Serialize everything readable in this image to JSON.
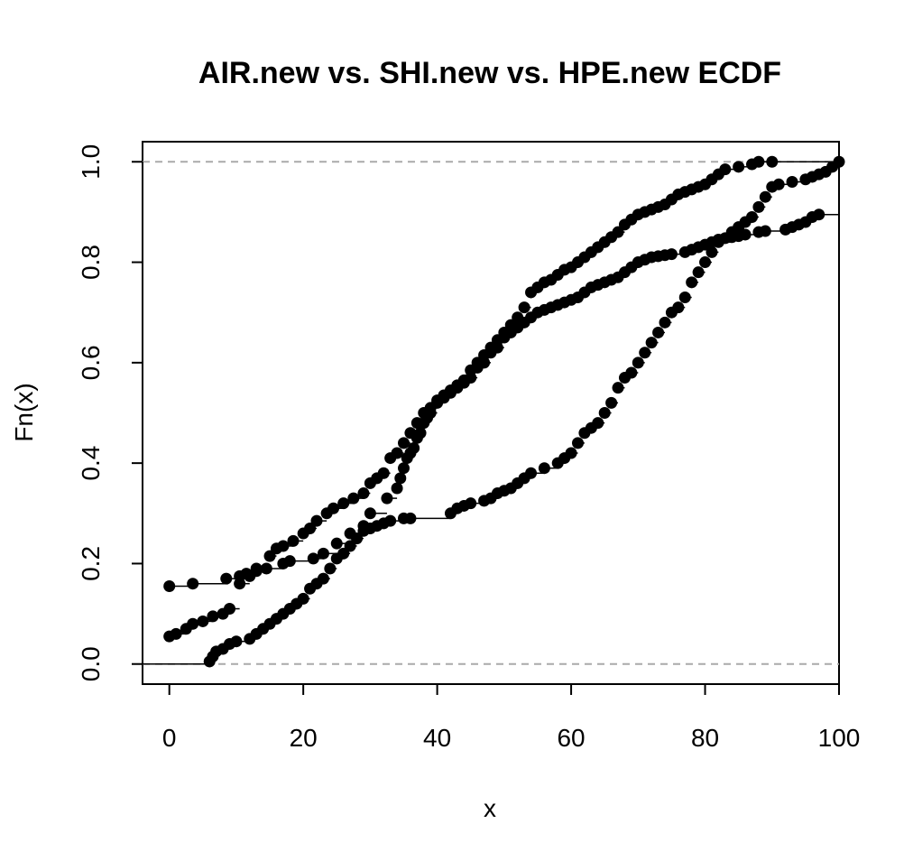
{
  "chart_data": {
    "type": "scatter",
    "subtype": "ecdf-step",
    "title": "AIR.new vs. SHI.new vs. HPE.new ECDF",
    "xlabel": "x",
    "ylabel": "Fn(x)",
    "xlim": [
      -4,
      100
    ],
    "ylim": [
      -0.04,
      1.04
    ],
    "x_ticks": [
      0,
      20,
      40,
      60,
      80,
      100
    ],
    "y_ticks": [
      0.0,
      0.2,
      0.4,
      0.6,
      0.8,
      1.0
    ],
    "x_tick_labels": [
      "0",
      "20",
      "40",
      "60",
      "80",
      "100"
    ],
    "y_tick_labels": [
      "0.0",
      "0.2",
      "0.4",
      "0.6",
      "0.8",
      "1.0"
    ],
    "reference_lines": [
      0,
      1
    ],
    "grid": false,
    "series": [
      {
        "x": [
          0,
          1,
          2.5,
          3.5,
          5,
          6.5,
          8,
          9,
          10.5,
          12,
          13,
          15,
          16,
          17,
          18.5,
          20,
          21,
          22,
          23.5,
          24.5,
          26,
          27.5,
          29,
          30,
          31,
          32,
          33,
          34,
          35,
          36,
          37,
          38,
          39,
          40,
          41,
          42,
          43,
          44,
          45,
          46,
          47,
          48,
          49,
          50,
          51,
          52,
          53,
          54,
          55,
          56,
          57,
          58,
          59,
          60,
          61,
          62,
          63,
          64,
          65,
          66,
          67,
          68,
          69,
          70,
          71,
          72,
          73,
          74,
          75,
          76,
          77,
          78,
          79,
          80,
          81,
          82,
          83,
          85,
          87,
          88,
          90
        ],
        "y": [
          0.055,
          0.06,
          0.07,
          0.08,
          0.085,
          0.095,
          0.1,
          0.11,
          0.16,
          0.175,
          0.19,
          0.215,
          0.23,
          0.235,
          0.245,
          0.26,
          0.27,
          0.285,
          0.3,
          0.31,
          0.32,
          0.33,
          0.34,
          0.36,
          0.37,
          0.38,
          0.41,
          0.42,
          0.44,
          0.46,
          0.48,
          0.5,
          0.51,
          0.525,
          0.535,
          0.545,
          0.555,
          0.565,
          0.585,
          0.6,
          0.615,
          0.63,
          0.645,
          0.66,
          0.675,
          0.69,
          0.71,
          0.74,
          0.75,
          0.76,
          0.765,
          0.775,
          0.785,
          0.79,
          0.8,
          0.81,
          0.82,
          0.83,
          0.84,
          0.85,
          0.86,
          0.875,
          0.885,
          0.895,
          0.9,
          0.905,
          0.91,
          0.915,
          0.925,
          0.935,
          0.94,
          0.945,
          0.95,
          0.955,
          0.965,
          0.975,
          0.985,
          0.99,
          0.995,
          1.0,
          1.0
        ]
      },
      {
        "x": [
          0,
          3.5,
          8.5,
          10.5,
          11.5,
          13,
          14.5,
          17,
          18,
          21.5,
          23,
          25,
          27,
          29,
          30,
          32.5,
          34,
          34.5,
          35,
          35.5,
          36,
          36.5,
          37,
          37.5,
          38,
          38.5,
          39,
          40,
          41,
          42,
          43,
          44,
          45,
          46,
          47,
          48,
          49,
          50,
          51,
          52,
          53,
          54,
          55,
          56,
          57,
          58,
          59,
          60,
          61,
          62,
          63,
          64,
          65,
          66,
          67,
          68,
          69,
          70,
          71,
          72,
          73,
          74,
          75,
          77,
          78,
          79,
          80,
          81,
          82,
          83,
          84,
          85,
          86,
          88,
          89,
          92,
          93,
          94,
          95,
          96,
          97
        ],
        "y": [
          0.155,
          0.16,
          0.17,
          0.175,
          0.18,
          0.185,
          0.19,
          0.2,
          0.205,
          0.21,
          0.22,
          0.24,
          0.26,
          0.275,
          0.3,
          0.33,
          0.35,
          0.37,
          0.39,
          0.41,
          0.42,
          0.43,
          0.45,
          0.46,
          0.48,
          0.49,
          0.5,
          0.52,
          0.53,
          0.54,
          0.55,
          0.56,
          0.57,
          0.59,
          0.6,
          0.62,
          0.63,
          0.65,
          0.66,
          0.67,
          0.68,
          0.69,
          0.7,
          0.705,
          0.71,
          0.715,
          0.72,
          0.725,
          0.73,
          0.74,
          0.75,
          0.755,
          0.76,
          0.765,
          0.77,
          0.78,
          0.79,
          0.8,
          0.805,
          0.81,
          0.812,
          0.814,
          0.816,
          0.82,
          0.825,
          0.83,
          0.835,
          0.84,
          0.845,
          0.848,
          0.85,
          0.852,
          0.855,
          0.86,
          0.862,
          0.865,
          0.87,
          0.875,
          0.88,
          0.89,
          0.895
        ]
      },
      {
        "x": [
          6,
          6.5,
          7,
          8,
          9,
          10,
          12,
          13,
          14,
          15,
          16,
          17,
          18,
          19,
          20,
          21,
          22,
          23,
          24,
          25,
          26,
          27,
          28,
          29,
          30,
          31,
          32,
          33,
          35,
          36,
          42,
          43,
          44,
          45,
          47,
          48,
          49,
          50,
          51,
          52,
          53,
          54,
          56,
          58,
          59,
          60,
          61,
          62,
          63,
          64,
          65,
          66,
          67,
          68,
          69,
          70,
          71,
          72,
          73,
          74,
          75,
          76,
          77,
          78,
          79,
          80,
          81,
          82,
          84,
          85,
          86,
          87,
          88,
          89,
          90,
          91,
          93,
          95,
          96,
          97,
          98,
          99,
          100
        ],
        "y": [
          0.005,
          0.015,
          0.025,
          0.03,
          0.04,
          0.045,
          0.05,
          0.06,
          0.07,
          0.08,
          0.09,
          0.1,
          0.11,
          0.12,
          0.13,
          0.15,
          0.16,
          0.17,
          0.19,
          0.21,
          0.22,
          0.235,
          0.25,
          0.265,
          0.27,
          0.275,
          0.28,
          0.285,
          0.29,
          0.29,
          0.3,
          0.31,
          0.315,
          0.32,
          0.325,
          0.33,
          0.34,
          0.345,
          0.35,
          0.36,
          0.37,
          0.38,
          0.39,
          0.4,
          0.41,
          0.42,
          0.44,
          0.46,
          0.47,
          0.48,
          0.5,
          0.52,
          0.55,
          0.57,
          0.58,
          0.6,
          0.62,
          0.64,
          0.66,
          0.68,
          0.7,
          0.71,
          0.73,
          0.76,
          0.78,
          0.8,
          0.82,
          0.84,
          0.86,
          0.87,
          0.88,
          0.89,
          0.91,
          0.93,
          0.95,
          0.955,
          0.96,
          0.965,
          0.97,
          0.975,
          0.98,
          0.99,
          1.0
        ]
      }
    ]
  }
}
